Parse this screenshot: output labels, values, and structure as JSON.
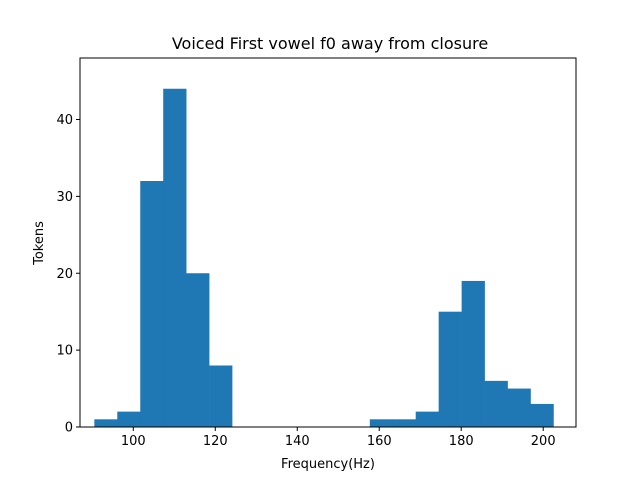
{
  "chart_data": {
    "type": "bar",
    "title": "Voiced First vowel f0 away from closure",
    "xlabel": "Frequency(Hz)",
    "ylabel": "Tokens",
    "xlim": [
      87,
      208
    ],
    "ylim": [
      0,
      48
    ],
    "x_ticks": [
      100,
      120,
      140,
      160,
      180,
      200
    ],
    "y_ticks": [
      0,
      10,
      20,
      30,
      40
    ],
    "bar_color": "#1f77b4",
    "grid": false,
    "bins": [
      {
        "x0": 90.5,
        "x1": 96.1,
        "count": 1
      },
      {
        "x0": 96.1,
        "x1": 101.7,
        "count": 2
      },
      {
        "x0": 101.7,
        "x1": 107.3,
        "count": 32
      },
      {
        "x0": 107.3,
        "x1": 112.9,
        "count": 44
      },
      {
        "x0": 112.9,
        "x1": 118.5,
        "count": 20
      },
      {
        "x0": 118.5,
        "x1": 124.1,
        "count": 8
      },
      {
        "x0": 124.1,
        "x1": 129.7,
        "count": 0
      },
      {
        "x0": 129.7,
        "x1": 135.3,
        "count": 0
      },
      {
        "x0": 135.3,
        "x1": 140.9,
        "count": 0
      },
      {
        "x0": 140.9,
        "x1": 146.5,
        "count": 0
      },
      {
        "x0": 146.5,
        "x1": 152.1,
        "count": 0
      },
      {
        "x0": 152.1,
        "x1": 157.7,
        "count": 0
      },
      {
        "x0": 157.7,
        "x1": 163.3,
        "count": 1
      },
      {
        "x0": 163.3,
        "x1": 168.9,
        "count": 1
      },
      {
        "x0": 168.9,
        "x1": 174.5,
        "count": 2
      },
      {
        "x0": 174.5,
        "x1": 180.1,
        "count": 15
      },
      {
        "x0": 180.1,
        "x1": 185.7,
        "count": 19
      },
      {
        "x0": 185.7,
        "x1": 191.3,
        "count": 6
      },
      {
        "x0": 191.3,
        "x1": 196.9,
        "count": 5
      },
      {
        "x0": 196.9,
        "x1": 202.5,
        "count": 3
      }
    ]
  }
}
